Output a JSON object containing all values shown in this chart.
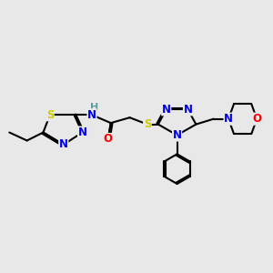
{
  "bg_color": "#e8e8e8",
  "atom_colors": {
    "N": "#0000ee",
    "S": "#cccc00",
    "O": "#ff0000",
    "H": "#5f9ea0",
    "C": "#000000"
  },
  "bond_color": "#000000",
  "bond_width": 1.5
}
